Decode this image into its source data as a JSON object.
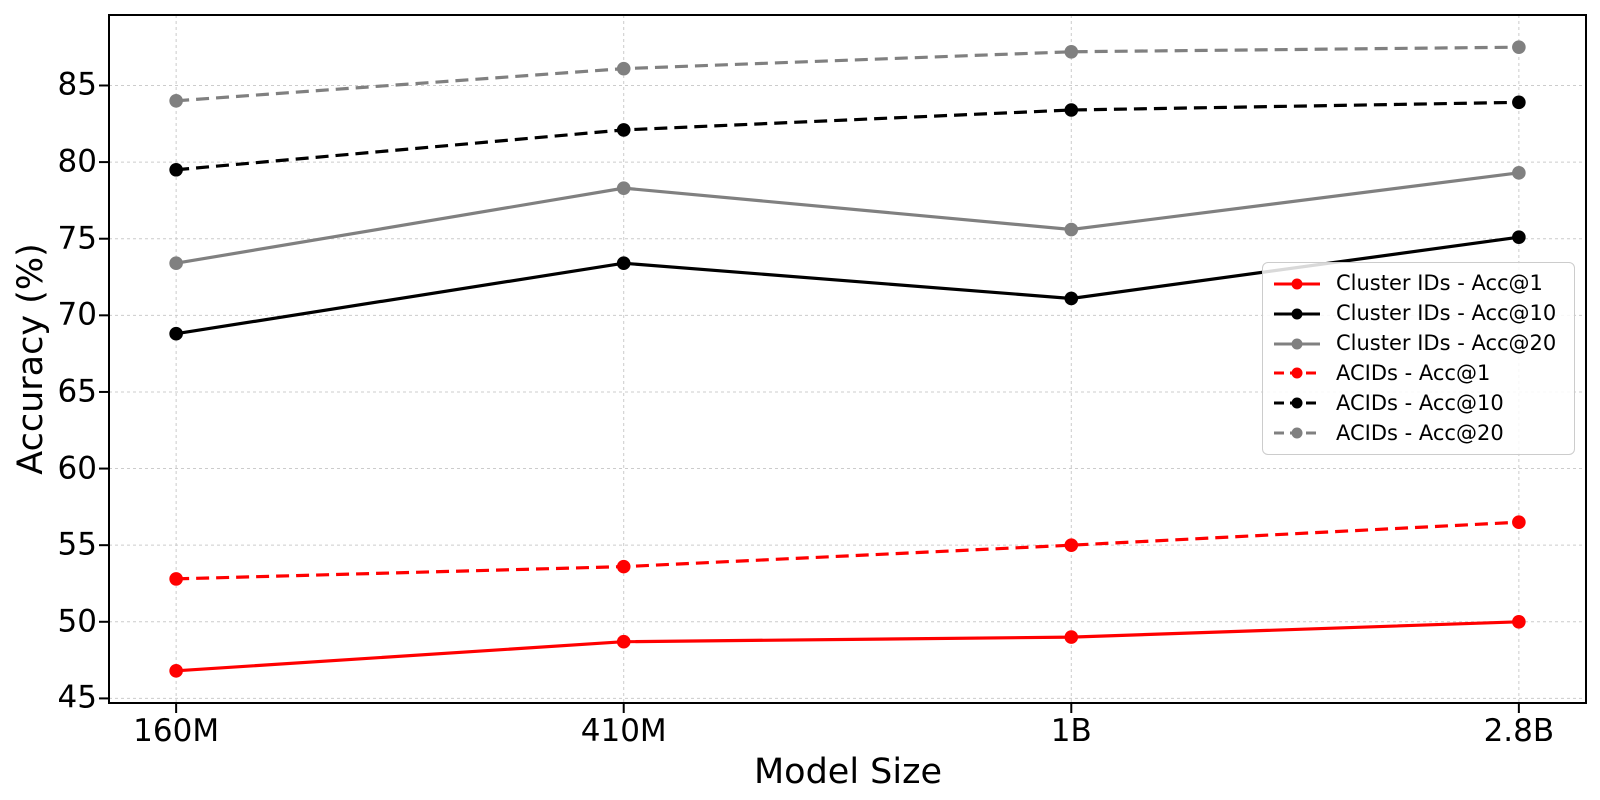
{
  "chart_data": {
    "type": "line",
    "title": "",
    "xlabel": "Model Size",
    "ylabel": "Accuracy (%)",
    "categories": [
      "160M",
      "410M",
      "1B",
      "2.8B"
    ],
    "y_ticks": [
      45,
      50,
      55,
      60,
      65,
      70,
      75,
      80,
      85
    ],
    "ylim": [
      44.7,
      89.6
    ],
    "grid": true,
    "legend_position": "center right",
    "series": [
      {
        "name": "Cluster IDs - Acc@1",
        "color": "#ff0000",
        "style": "solid",
        "marker": "circle",
        "values": [
          46.8,
          48.7,
          49.0,
          50.0
        ]
      },
      {
        "name": "Cluster IDs - Acc@10",
        "color": "#000000",
        "style": "solid",
        "marker": "circle",
        "values": [
          68.8,
          73.4,
          71.1,
          75.1
        ]
      },
      {
        "name": "Cluster IDs - Acc@20",
        "color": "#808080",
        "style": "solid",
        "marker": "circle",
        "values": [
          73.4,
          78.3,
          75.6,
          79.3
        ]
      },
      {
        "name": "ACIDs - Acc@1",
        "color": "#ff0000",
        "style": "dashed",
        "marker": "circle",
        "values": [
          52.8,
          53.6,
          55.0,
          56.5
        ]
      },
      {
        "name": "ACIDs - Acc@10",
        "color": "#000000",
        "style": "dashed",
        "marker": "circle",
        "values": [
          79.5,
          82.1,
          83.4,
          83.9
        ]
      },
      {
        "name": "ACIDs - Acc@20",
        "color": "#808080",
        "style": "dashed",
        "marker": "circle",
        "values": [
          84.0,
          86.1,
          87.2,
          87.5
        ]
      }
    ]
  }
}
